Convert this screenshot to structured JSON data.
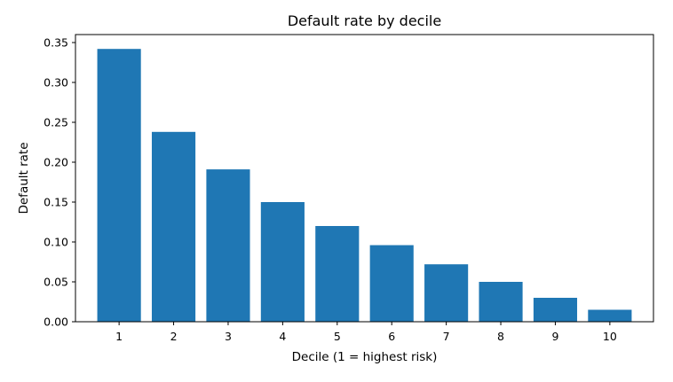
{
  "chart_data": {
    "type": "bar",
    "title": "Default rate by decile",
    "xlabel": "Decile (1 = highest risk)",
    "ylabel": "Default rate",
    "categories": [
      "1",
      "2",
      "3",
      "4",
      "5",
      "6",
      "7",
      "8",
      "9",
      "10"
    ],
    "values": [
      0.342,
      0.238,
      0.191,
      0.15,
      0.12,
      0.096,
      0.072,
      0.05,
      0.03,
      0.015
    ],
    "ylim": [
      0,
      0.36
    ],
    "yticks": [
      0.0,
      0.05,
      0.1,
      0.15,
      0.2,
      0.25,
      0.3,
      0.35
    ],
    "ytick_labels": [
      "0.00",
      "0.05",
      "0.10",
      "0.15",
      "0.20",
      "0.25",
      "0.30",
      "0.35"
    ],
    "grid": false,
    "legend": "none",
    "bar_color": "#1f77b4"
  }
}
